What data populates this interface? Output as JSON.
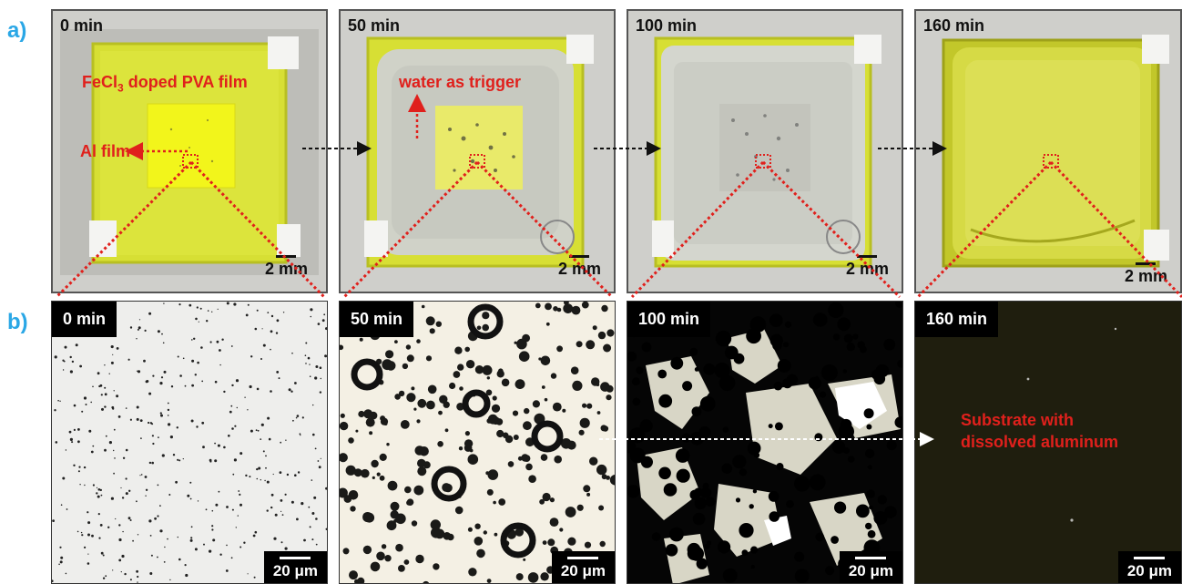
{
  "panels": {
    "a_label": "a)",
    "b_label": "b)"
  },
  "photos": [
    {
      "time": "0 min",
      "scale": "2 mm"
    },
    {
      "time": "50 min",
      "scale": "2 mm"
    },
    {
      "time": "100 min",
      "scale": "2 mm"
    },
    {
      "time": "160 min",
      "scale": "2 mm"
    }
  ],
  "micrographs": [
    {
      "time": "0 min",
      "scale": "20 μm"
    },
    {
      "time": "50 min",
      "scale": "20 μm"
    },
    {
      "time": "100 min",
      "scale": "20 μm"
    },
    {
      "time": "160 min",
      "scale": "20 μm"
    }
  ],
  "annotations": {
    "film_prefix": "FeCl",
    "film_sub": "3",
    "film_suffix": " doped PVA film",
    "al_film": "Al film",
    "water_trigger": "water as trigger",
    "substrate_line1": "Substrate with",
    "substrate_line2": "dissolved aluminum"
  },
  "colors": {
    "panel_label": "#2aa7e6",
    "annotation_red": "#e0201c",
    "pva_yellow": "#dfe63a"
  }
}
